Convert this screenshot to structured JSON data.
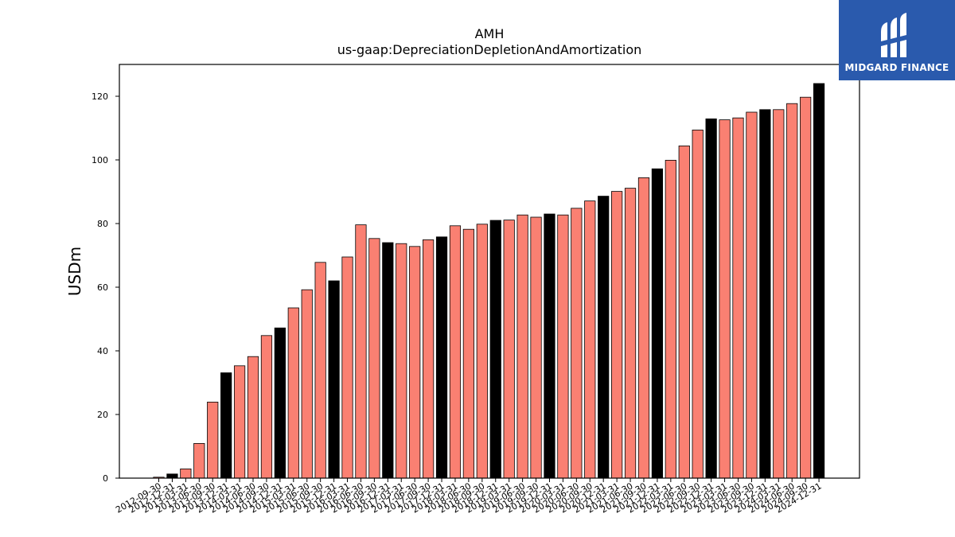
{
  "logo": {
    "text": "MIDGARD FINANCE",
    "icon": "midgard-finance-logo"
  },
  "chart_data": {
    "type": "bar",
    "title": "AMH",
    "subtitle": "us-gaap:DepreciationDepletionAndAmortization",
    "ylabel": "USDm",
    "xlabel": "",
    "ylim": [
      0,
      130
    ],
    "yticks": [
      0,
      20,
      40,
      60,
      80,
      100,
      120
    ],
    "grid": false,
    "colors": {
      "quarter": "#fa8072",
      "fiscal_year_end": "#000000",
      "edge": "#000000"
    },
    "categories": [
      "2012-09-30",
      "2012-12-31",
      "2013-03-31",
      "2013-06-30",
      "2013-09-30",
      "2013-12-31",
      "2014-03-31",
      "2014-06-30",
      "2014-09-30",
      "2014-12-31",
      "2015-03-31",
      "2015-06-30",
      "2015-09-30",
      "2015-12-31",
      "2016-03-31",
      "2016-06-30",
      "2016-09-30",
      "2016-12-31",
      "2017-03-31",
      "2017-06-30",
      "2017-09-30",
      "2017-12-31",
      "2018-03-31",
      "2018-06-30",
      "2018-09-30",
      "2018-12-31",
      "2019-03-31",
      "2019-06-30",
      "2019-09-30",
      "2019-12-31",
      "2020-03-31",
      "2020-06-30",
      "2020-09-30",
      "2020-12-31",
      "2021-03-31",
      "2021-06-30",
      "2021-09-30",
      "2021-12-31",
      "2022-03-31",
      "2022-06-30",
      "2022-09-30",
      "2022-12-31",
      "2023-03-31",
      "2023-06-30",
      "2023-09-30",
      "2023-12-31",
      "2024-03-31",
      "2024-06-30",
      "2024-09-30",
      "2024-12-31"
    ],
    "values": [
      0.3,
      1.3,
      2.9,
      10.9,
      23.9,
      33.1,
      35.3,
      38.2,
      44.8,
      47.2,
      53.5,
      59.2,
      67.8,
      62.0,
      69.5,
      79.6,
      75.3,
      74.0,
      73.7,
      72.8,
      74.9,
      75.8,
      79.3,
      78.2,
      79.8,
      81.0,
      81.1,
      82.7,
      82.0,
      83.0,
      82.7,
      84.8,
      87.1,
      88.6,
      90.1,
      91.1,
      94.4,
      97.2,
      99.9,
      104.4,
      109.4,
      112.9,
      112.6,
      113.2,
      115.0,
      115.8,
      115.8,
      117.7,
      119.7,
      124.0
    ],
    "fiscal_year_end_flags": [
      false,
      true,
      false,
      false,
      false,
      true,
      false,
      false,
      false,
      true,
      false,
      false,
      false,
      true,
      false,
      false,
      false,
      true,
      false,
      false,
      false,
      true,
      false,
      false,
      false,
      true,
      false,
      false,
      false,
      true,
      false,
      false,
      false,
      true,
      false,
      false,
      false,
      true,
      false,
      false,
      false,
      true,
      false,
      false,
      false,
      true,
      false,
      false,
      false,
      true
    ]
  }
}
